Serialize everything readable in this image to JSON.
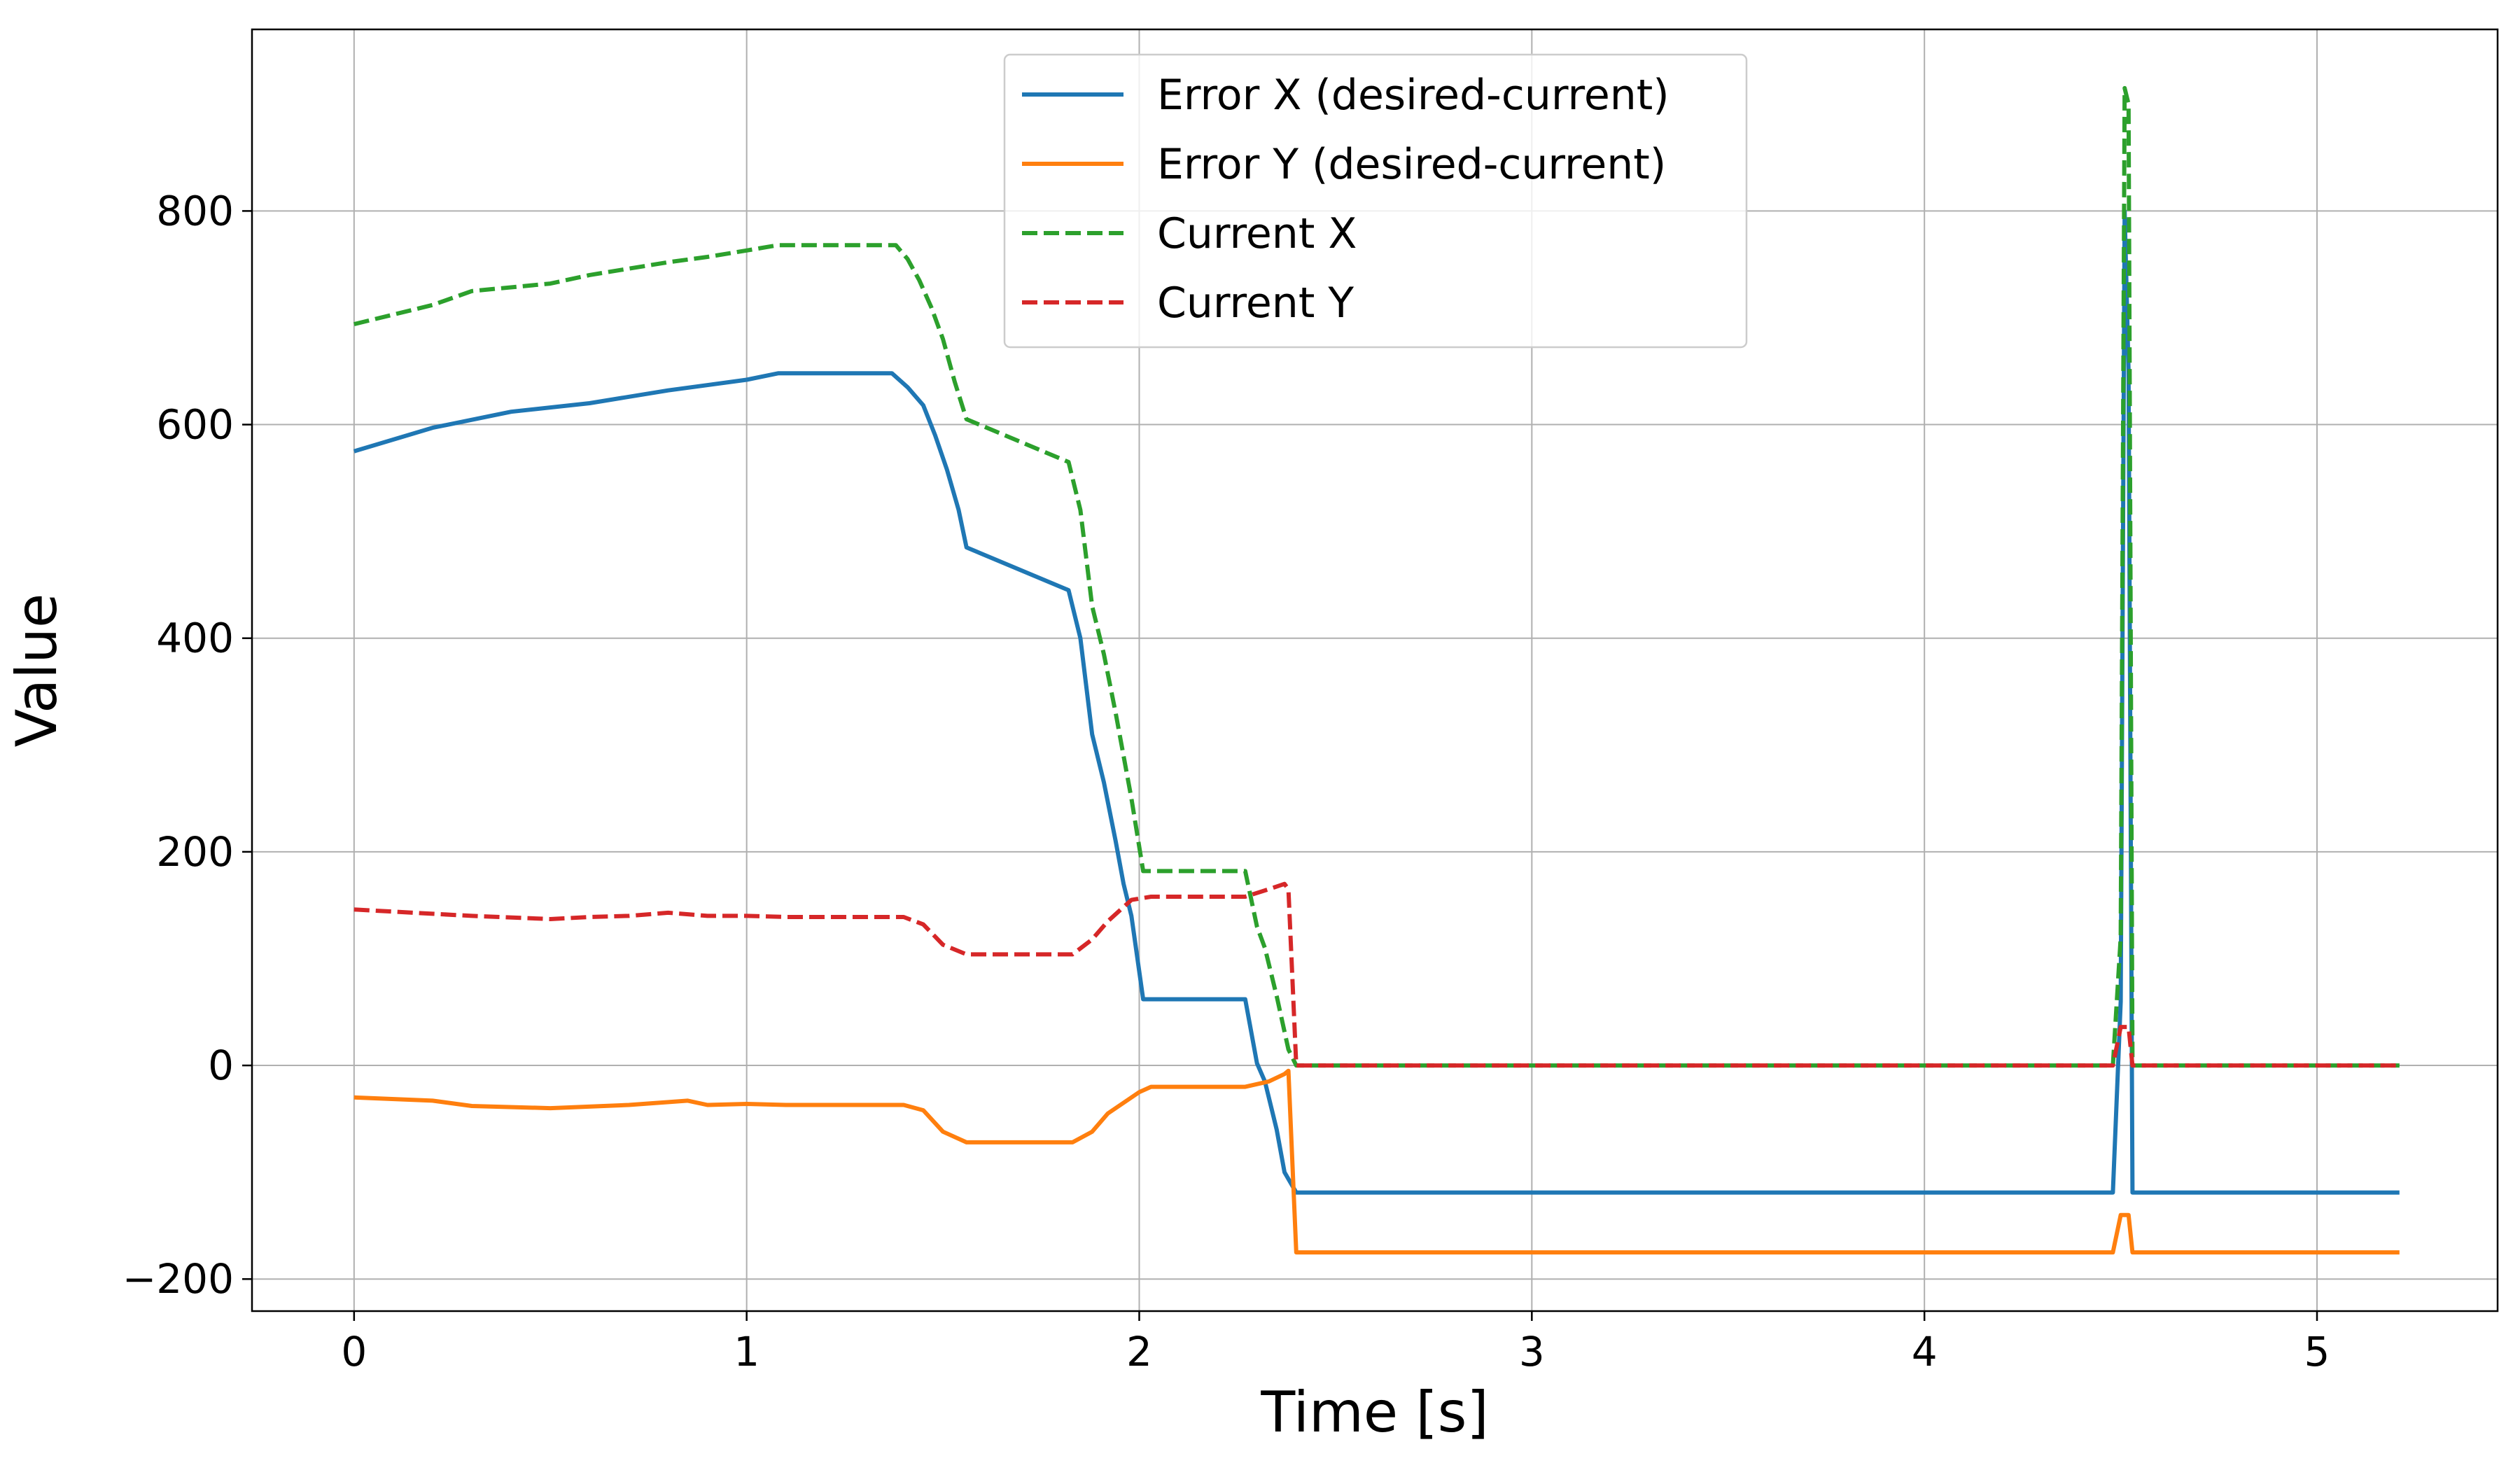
{
  "chart_data": {
    "type": "line",
    "title": "",
    "xlabel": "Time [s]",
    "ylabel": "Value",
    "xlim": [
      -0.26,
      5.46
    ],
    "ylim": [
      -230,
      970
    ],
    "xticks": [
      0,
      1,
      2,
      3,
      4,
      5
    ],
    "xtick_labels": [
      "0",
      "1",
      "2",
      "3",
      "4",
      "5"
    ],
    "yticks": [
      -200,
      0,
      200,
      400,
      600,
      800
    ],
    "ytick_labels": [
      "−200",
      "0",
      "200",
      "400",
      "600",
      "800"
    ],
    "grid": true,
    "legend_position": "top-center",
    "series": [
      {
        "name": "Error X (desired-current)",
        "color": "#1f77b4",
        "style": "solid",
        "points": [
          [
            0,
            575
          ],
          [
            0.2,
            597
          ],
          [
            0.4,
            612
          ],
          [
            0.6,
            620
          ],
          [
            0.8,
            632
          ],
          [
            1.0,
            642
          ],
          [
            1.08,
            648
          ],
          [
            1.37,
            648
          ],
          [
            1.41,
            635
          ],
          [
            1.45,
            618
          ],
          [
            1.48,
            590
          ],
          [
            1.51,
            558
          ],
          [
            1.54,
            520
          ],
          [
            1.56,
            485
          ],
          [
            1.82,
            445
          ],
          [
            1.85,
            400
          ],
          [
            1.88,
            310
          ],
          [
            1.91,
            265
          ],
          [
            1.94,
            210
          ],
          [
            1.96,
            170
          ],
          [
            1.98,
            140
          ],
          [
            2.01,
            62
          ],
          [
            2.27,
            62
          ],
          [
            2.3,
            2
          ],
          [
            2.32,
            -15
          ],
          [
            2.35,
            -60
          ],
          [
            2.37,
            -100
          ],
          [
            2.4,
            -119
          ],
          [
            4.48,
            -119
          ],
          [
            4.5,
            60
          ],
          [
            4.51,
            800
          ],
          [
            4.52,
            650
          ],
          [
            4.53,
            -119
          ],
          [
            5.21,
            -119
          ]
        ]
      },
      {
        "name": "Error Y (desired-current)",
        "color": "#ff7f0e",
        "style": "solid",
        "points": [
          [
            0,
            -30
          ],
          [
            0.2,
            -33
          ],
          [
            0.3,
            -38
          ],
          [
            0.5,
            -40
          ],
          [
            0.7,
            -37
          ],
          [
            0.85,
            -33
          ],
          [
            0.9,
            -37
          ],
          [
            1.0,
            -36
          ],
          [
            1.1,
            -37
          ],
          [
            1.4,
            -37
          ],
          [
            1.45,
            -42
          ],
          [
            1.5,
            -62
          ],
          [
            1.56,
            -72
          ],
          [
            1.83,
            -72
          ],
          [
            1.88,
            -62
          ],
          [
            1.92,
            -45
          ],
          [
            2.0,
            -25
          ],
          [
            2.03,
            -20
          ],
          [
            2.27,
            -20
          ],
          [
            2.33,
            -15
          ],
          [
            2.37,
            -8
          ],
          [
            2.38,
            -5
          ],
          [
            2.4,
            -175
          ],
          [
            4.48,
            -175
          ],
          [
            4.5,
            -140
          ],
          [
            4.52,
            -140
          ],
          [
            4.53,
            -175
          ],
          [
            5.21,
            -175
          ]
        ]
      },
      {
        "name": "Current X",
        "color": "#2ca02c",
        "style": "dashed",
        "points": [
          [
            0,
            694
          ],
          [
            0.2,
            712
          ],
          [
            0.3,
            725
          ],
          [
            0.5,
            732
          ],
          [
            0.6,
            740
          ],
          [
            0.8,
            752
          ],
          [
            0.9,
            757
          ],
          [
            1.0,
            763
          ],
          [
            1.08,
            768
          ],
          [
            1.38,
            768
          ],
          [
            1.41,
            755
          ],
          [
            1.44,
            735
          ],
          [
            1.47,
            710
          ],
          [
            1.5,
            680
          ],
          [
            1.53,
            640
          ],
          [
            1.56,
            605
          ],
          [
            1.82,
            565
          ],
          [
            1.85,
            520
          ],
          [
            1.88,
            430
          ],
          [
            1.91,
            385
          ],
          [
            1.94,
            330
          ],
          [
            1.98,
            250
          ],
          [
            2.01,
            182
          ],
          [
            2.27,
            182
          ],
          [
            2.3,
            130
          ],
          [
            2.32,
            110
          ],
          [
            2.35,
            65
          ],
          [
            2.38,
            15
          ],
          [
            2.4,
            0
          ],
          [
            4.48,
            0
          ],
          [
            4.5,
            120
          ],
          [
            4.51,
            915
          ],
          [
            4.52,
            900
          ],
          [
            4.53,
            0
          ],
          [
            5.21,
            0
          ]
        ]
      },
      {
        "name": "Current Y",
        "color": "#d62728",
        "style": "dashed",
        "points": [
          [
            0,
            146
          ],
          [
            0.2,
            142
          ],
          [
            0.3,
            140
          ],
          [
            0.5,
            137
          ],
          [
            0.6,
            139
          ],
          [
            0.7,
            140
          ],
          [
            0.8,
            143
          ],
          [
            0.9,
            140
          ],
          [
            1.0,
            140
          ],
          [
            1.1,
            139
          ],
          [
            1.4,
            139
          ],
          [
            1.45,
            132
          ],
          [
            1.5,
            113
          ],
          [
            1.56,
            104
          ],
          [
            1.83,
            104
          ],
          [
            1.88,
            118
          ],
          [
            1.92,
            135
          ],
          [
            1.98,
            155
          ],
          [
            2.03,
            158
          ],
          [
            2.27,
            158
          ],
          [
            2.33,
            165
          ],
          [
            2.37,
            170
          ],
          [
            2.38,
            165
          ],
          [
            2.4,
            0
          ],
          [
            4.48,
            0
          ],
          [
            4.5,
            36
          ],
          [
            4.52,
            36
          ],
          [
            4.53,
            0
          ],
          [
            5.21,
            0
          ]
        ]
      }
    ]
  }
}
